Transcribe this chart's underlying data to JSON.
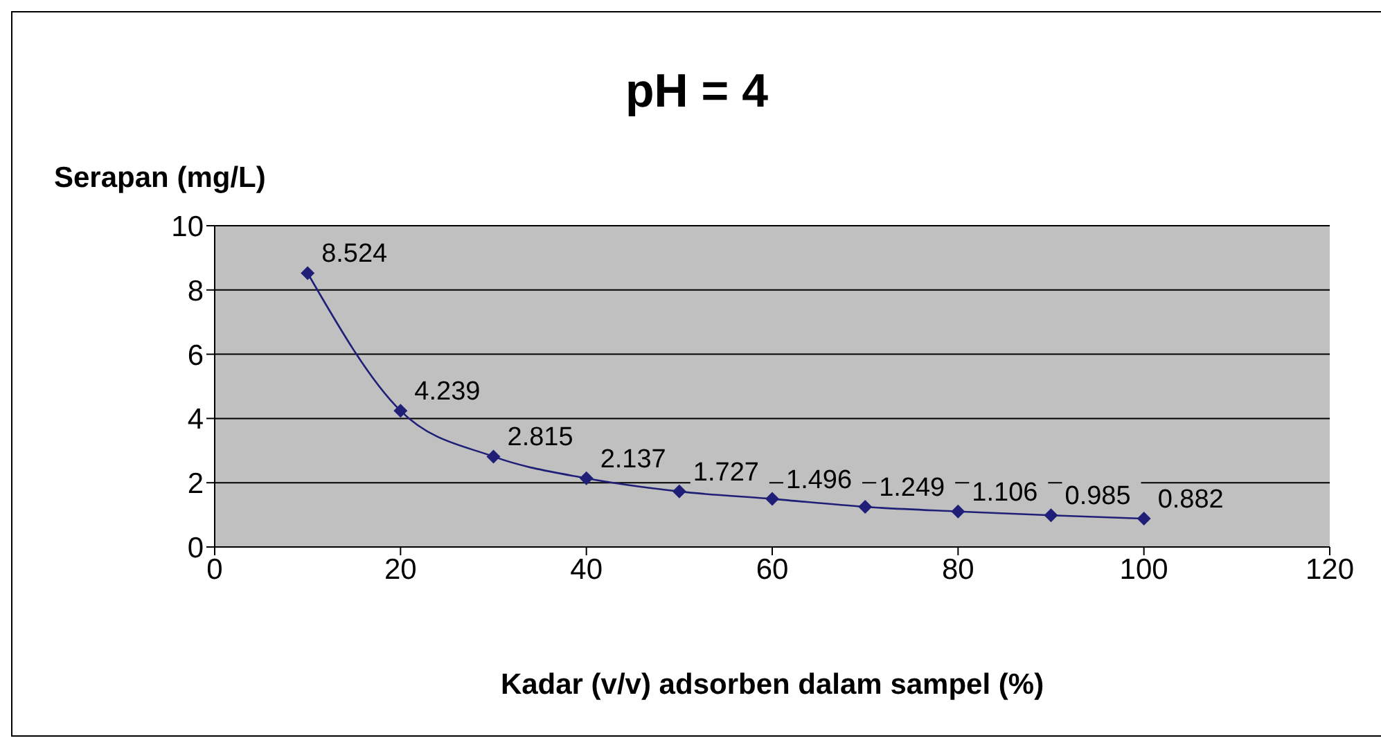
{
  "chart_data": {
    "type": "line",
    "title": "pH = 4",
    "ylabel": "Serapan (mg/L)",
    "xlabel": "Kadar (v/v) adsorben dalam sampel (%)",
    "x": [
      10,
      20,
      30,
      40,
      50,
      60,
      70,
      80,
      90,
      100
    ],
    "series": [
      {
        "color": "#1f1f78",
        "values": [
          8.524,
          4.239,
          2.815,
          2.137,
          1.727,
          1.496,
          1.249,
          1.106,
          0.985,
          0.882
        ]
      }
    ],
    "xlim": [
      0,
      120
    ],
    "xticks": [
      0,
      20,
      40,
      60,
      80,
      100,
      120
    ],
    "ylim": [
      0,
      10
    ],
    "yticks": [
      0,
      2,
      4,
      6,
      8,
      10
    ],
    "grid": "y",
    "marker": "diamond",
    "line_style": "solid",
    "data_labels": true
  }
}
